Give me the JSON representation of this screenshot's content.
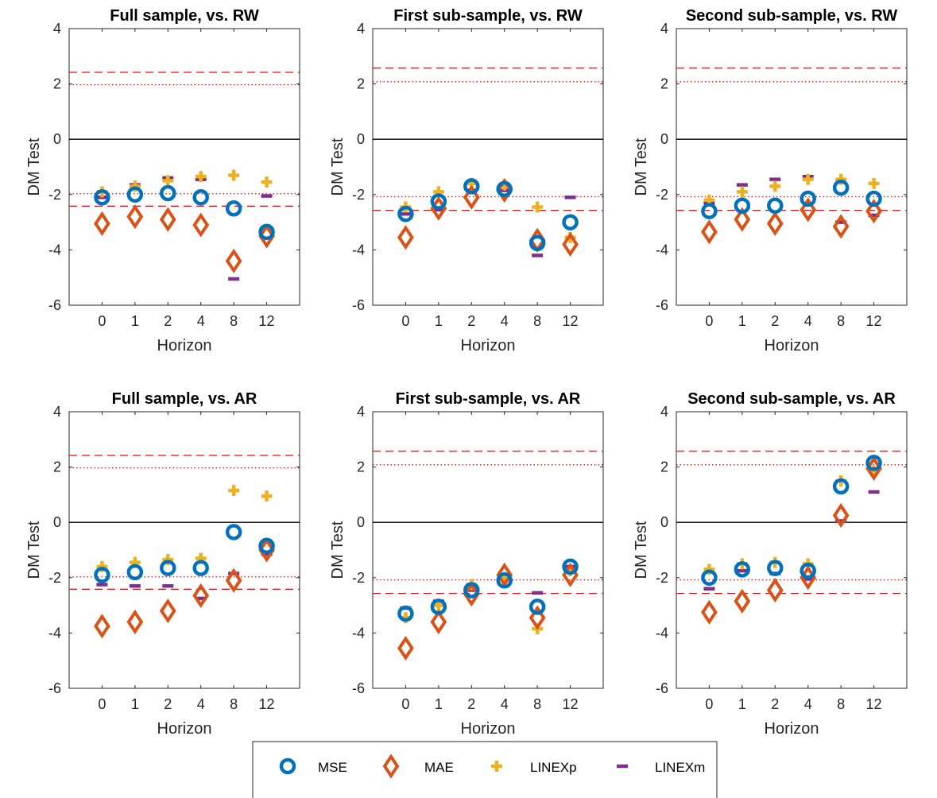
{
  "chart_data": [
    {
      "type": "scatter",
      "title": "Full sample, vs. RW",
      "xlabel": "Horizon",
      "ylabel": "DM Test",
      "categories": [
        "0",
        "1",
        "2",
        "4",
        "8",
        "12"
      ],
      "ylim": [
        -6,
        4
      ],
      "yticks": [
        "-6",
        "-4",
        "-2",
        "0",
        "2",
        "4"
      ],
      "ref_lines": {
        "zero": 0,
        "dashed": [
          2.42,
          -2.42
        ],
        "dotted": [
          1.97,
          -1.97
        ]
      },
      "series": [
        {
          "name": "MSE",
          "values": [
            -2.1,
            -2.0,
            -1.95,
            -2.1,
            -2.5,
            -3.35
          ]
        },
        {
          "name": "MAE",
          "values": [
            -3.05,
            -2.8,
            -2.9,
            -3.1,
            -4.4,
            -3.5
          ]
        },
        {
          "name": "LINEXp",
          "values": [
            -1.9,
            -1.7,
            -1.5,
            -1.35,
            -1.3,
            -1.55
          ]
        },
        {
          "name": "LINEXm",
          "values": [
            -2.1,
            -1.65,
            -1.4,
            -1.45,
            -5.05,
            -2.05
          ]
        }
      ]
    },
    {
      "type": "scatter",
      "title": "First sub-sample, vs. RW",
      "xlabel": "Horizon",
      "ylabel": "DM Test",
      "categories": [
        "0",
        "1",
        "2",
        "4",
        "8",
        "12"
      ],
      "ylim": [
        -6,
        4
      ],
      "yticks": [
        "-6",
        "-4",
        "-2",
        "0",
        "2",
        "4"
      ],
      "ref_lines": {
        "zero": 0,
        "dashed": [
          2.57,
          -2.57
        ],
        "dotted": [
          2.08,
          -2.08
        ]
      },
      "series": [
        {
          "name": "MSE",
          "values": [
            -2.7,
            -2.25,
            -1.7,
            -1.8,
            -3.75,
            -3.0
          ]
        },
        {
          "name": "MAE",
          "values": [
            -3.55,
            -2.5,
            -2.1,
            -1.85,
            -3.65,
            -3.8
          ]
        },
        {
          "name": "LINEXp",
          "values": [
            -2.45,
            -1.9,
            -1.6,
            -1.65,
            -2.45,
            -3.55
          ]
        },
        {
          "name": "LINEXm",
          "values": [
            -2.7,
            -2.55,
            -1.85,
            -1.85,
            -4.2,
            -2.1
          ]
        }
      ]
    },
    {
      "type": "scatter",
      "title": "Second sub-sample, vs. RW",
      "xlabel": "Horizon",
      "ylabel": "DM Test",
      "categories": [
        "0",
        "1",
        "2",
        "4",
        "8",
        "12"
      ],
      "ylim": [
        -6,
        4
      ],
      "yticks": [
        "-6",
        "-4",
        "-2",
        "0",
        "2",
        "4"
      ],
      "ref_lines": {
        "zero": 0,
        "dashed": [
          2.57,
          -2.57
        ],
        "dotted": [
          2.08,
          -2.08
        ]
      },
      "series": [
        {
          "name": "MSE",
          "values": [
            -2.6,
            -2.4,
            -2.4,
            -2.15,
            -1.75,
            -2.15
          ]
        },
        {
          "name": "MAE",
          "values": [
            -3.35,
            -2.9,
            -3.05,
            -2.55,
            -3.15,
            -2.6
          ]
        },
        {
          "name": "LINEXp",
          "values": [
            -2.2,
            -1.9,
            -1.7,
            -1.45,
            -1.45,
            -1.6
          ]
        },
        {
          "name": "LINEXm",
          "values": [
            -2.3,
            -1.65,
            -1.45,
            -1.35,
            -3.0,
            -2.75
          ]
        }
      ]
    },
    {
      "type": "scatter",
      "title": "Full sample, vs. AR",
      "xlabel": "Horizon",
      "ylabel": "DM Test",
      "categories": [
        "0",
        "1",
        "2",
        "4",
        "8",
        "12"
      ],
      "ylim": [
        -6,
        4
      ],
      "yticks": [
        "-6",
        "-4",
        "-2",
        "0",
        "2",
        "4"
      ],
      "ref_lines": {
        "zero": 0,
        "dashed": [
          2.42,
          -2.42
        ],
        "dotted": [
          1.97,
          -1.97
        ]
      },
      "series": [
        {
          "name": "MSE",
          "values": [
            -1.9,
            -1.8,
            -1.65,
            -1.65,
            -0.35,
            -0.85
          ]
        },
        {
          "name": "MAE",
          "values": [
            -3.75,
            -3.6,
            -3.2,
            -2.65,
            -2.1,
            -1.0
          ]
        },
        {
          "name": "LINEXp",
          "values": [
            -1.6,
            -1.45,
            -1.35,
            -1.3,
            1.15,
            0.95
          ]
        },
        {
          "name": "LINEXm",
          "values": [
            -2.25,
            -2.3,
            -2.3,
            -2.75,
            -1.85,
            -1.15
          ]
        }
      ]
    },
    {
      "type": "scatter",
      "title": "First sub-sample, vs. AR",
      "xlabel": "Horizon",
      "ylabel": "DM Test",
      "categories": [
        "0",
        "1",
        "2",
        "4",
        "8",
        "12"
      ],
      "ylim": [
        -6,
        4
      ],
      "yticks": [
        "-6",
        "-4",
        "-2",
        "0",
        "2",
        "4"
      ],
      "ref_lines": {
        "zero": 0,
        "dashed": [
          2.57,
          -2.57
        ],
        "dotted": [
          2.08,
          -2.08
        ]
      },
      "series": [
        {
          "name": "MSE",
          "values": [
            -3.3,
            -3.05,
            -2.45,
            -2.1,
            -3.05,
            -1.6
          ]
        },
        {
          "name": "MAE",
          "values": [
            -4.55,
            -3.6,
            -2.6,
            -1.9,
            -3.45,
            -1.9
          ]
        },
        {
          "name": "LINEXp",
          "values": [
            -3.45,
            -3.0,
            -2.25,
            -2.0,
            -3.85,
            -1.75
          ]
        },
        {
          "name": "LINEXm",
          "values": [
            -3.1,
            -2.85,
            -2.45,
            -1.95,
            -2.55,
            -1.6
          ]
        }
      ]
    },
    {
      "type": "scatter",
      "title": "Second sub-sample, vs. AR",
      "xlabel": "Horizon",
      "ylabel": "DM Test",
      "categories": [
        "0",
        "1",
        "2",
        "4",
        "8",
        "12"
      ],
      "ylim": [
        -6,
        4
      ],
      "yticks": [
        "-6",
        "-4",
        "-2",
        "0",
        "2",
        "4"
      ],
      "ref_lines": {
        "zero": 0,
        "dashed": [
          2.57,
          -2.57
        ],
        "dotted": [
          2.08,
          -2.08
        ]
      },
      "series": [
        {
          "name": "MSE",
          "values": [
            -2.0,
            -1.7,
            -1.65,
            -1.75,
            1.3,
            2.15
          ]
        },
        {
          "name": "MAE",
          "values": [
            -3.25,
            -2.85,
            -2.45,
            -2.0,
            0.25,
            1.95
          ]
        },
        {
          "name": "LINEXp",
          "values": [
            -1.7,
            -1.5,
            -1.45,
            -1.5,
            1.5,
            1.85
          ]
        },
        {
          "name": "LINEXm",
          "values": [
            -2.4,
            -1.75,
            -1.85,
            -2.05,
            0.05,
            1.1
          ]
        }
      ]
    }
  ],
  "legend": {
    "placement": "bottom-center",
    "entries": [
      {
        "name": "MSE",
        "marker": "circle",
        "color": "#0072BD"
      },
      {
        "name": "MAE",
        "marker": "diamond",
        "color": "#D95319"
      },
      {
        "name": "LINEXp",
        "marker": "plus",
        "color": "#EDB120"
      },
      {
        "name": "LINEXm",
        "marker": "dash",
        "color": "#7E2F8E"
      }
    ]
  },
  "colors": {
    "MSE": "#0072BD",
    "MAE": "#D95319",
    "LINEXp": "#EDB120",
    "LINEXm": "#7E2F8E",
    "reference": "#FF0000",
    "axis": "#262626"
  }
}
